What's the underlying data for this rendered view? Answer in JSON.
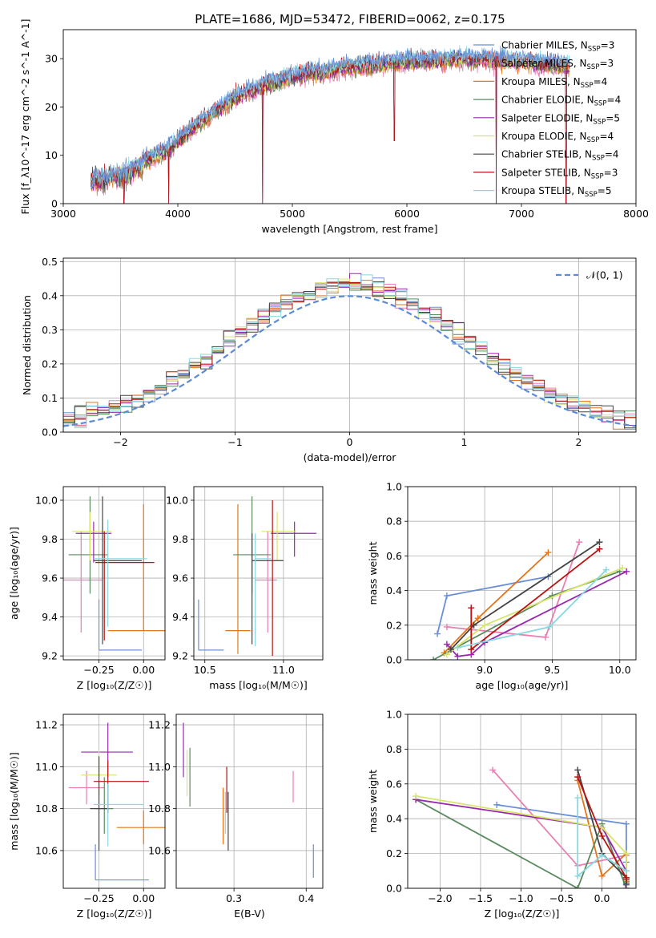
{
  "figure_title": "PLATE=1686, MJD=53472, FIBERID=0062, z=0.175",
  "colors": {
    "Chabrier MILES": "#6a8fd6",
    "Salpeter MILES": "#ea7fb4",
    "Kroupa MILES": "#e1761c",
    "Chabrier ELODIE": "#5a8a5e",
    "Salpeter ELODIE": "#9a27b0",
    "Kroupa ELODIE": "#d7e56a",
    "Chabrier STELIB": "#444444",
    "Salpeter STELIB": "#bb1111",
    "Kroupa STELIB": "#88d8e0"
  },
  "chart_data": [
    {
      "id": "spectrum",
      "type": "line",
      "xlabel": "wavelength [Angstrom, rest frame]",
      "ylabel": "Flux [f_λ10^-17 erg cm^-2 s^-1 A^-1]",
      "xlim": [
        3000,
        8000
      ],
      "ylim": [
        0,
        36
      ],
      "xticks": [
        3000,
        4000,
        5000,
        6000,
        7000,
        8000
      ],
      "yticks": [
        0,
        10,
        20,
        30
      ],
      "grid": false,
      "legend_position": "top-right",
      "legend": [
        {
          "label": "Chabrier MILES, N",
          "sub": "SSP",
          "tail": "=3",
          "model": "Chabrier MILES"
        },
        {
          "label": "Salpeter MILES, N",
          "sub": "SSP",
          "tail": "=3",
          "model": "Salpeter MILES"
        },
        {
          "label": "Kroupa MILES, N",
          "sub": "SSP",
          "tail": "=4",
          "model": "Kroupa MILES"
        },
        {
          "label": "Chabrier ELODIE, N",
          "sub": "SSP",
          "tail": "=4",
          "model": "Chabrier ELODIE"
        },
        {
          "label": "Salpeter ELODIE, N",
          "sub": "SSP",
          "tail": "=5",
          "model": "Salpeter ELODIE"
        },
        {
          "label": "Kroupa ELODIE, N",
          "sub": "SSP",
          "tail": "=4",
          "model": "Kroupa ELODIE"
        },
        {
          "label": "Chabrier STELIB, N",
          "sub": "SSP",
          "tail": "=4",
          "model": "Chabrier STELIB"
        },
        {
          "label": "Salpeter STELIB, N",
          "sub": "SSP",
          "tail": "=3",
          "model": "Salpeter STELIB"
        },
        {
          "label": "Kroupa STELIB, N",
          "sub": "SSP",
          "tail": "=5",
          "model": "Kroupa STELIB"
        }
      ],
      "continuum_x": [
        3250,
        3500,
        3700,
        3900,
        4000,
        4200,
        4500,
        4800,
        5000,
        5300,
        5600,
        6000,
        6500,
        7000,
        7300,
        7420
      ],
      "continuum_y": [
        5.5,
        6.5,
        9,
        11,
        13,
        17,
        22,
        25,
        26.5,
        27.5,
        28.5,
        29.5,
        30,
        29.5,
        29,
        28.5
      ],
      "data_range": [
        3240,
        7420
      ],
      "features": [
        {
          "x": 3530,
          "y": 0
        },
        {
          "x": 3920,
          "y": 0
        },
        {
          "x": 4740,
          "y": 0
        },
        {
          "x": 5890,
          "y": 13
        },
        {
          "x": 6780,
          "y": 0
        },
        {
          "x": 7390,
          "y": 0
        }
      ]
    },
    {
      "id": "residuals",
      "type": "histogram",
      "xlabel": "(data-model)/error",
      "ylabel": "Normed distribution",
      "xlim": [
        -2.5,
        2.5
      ],
      "ylim": [
        0,
        0.51
      ],
      "xticks": [
        -2,
        -1,
        0,
        1,
        2
      ],
      "yticks": [
        0.0,
        0.1,
        0.2,
        0.3,
        0.4,
        0.5
      ],
      "grid": true,
      "legend_position": "top-right",
      "legend": [
        {
          "label": "𝒩(0, 1)"
        }
      ],
      "bins": [
        -2.5,
        2.5,
        50
      ]
    },
    {
      "id": "age_vs_Z",
      "type": "errorbar",
      "xlabel": "Z [log₁₀(Z/Z☉)]",
      "ylabel": "age  [log₁₀(age/yr)]",
      "xlim": [
        -0.45,
        0.12
      ],
      "ylim": [
        9.18,
        10.07
      ],
      "xticks": [
        -0.25,
        0.0
      ],
      "yticks": [
        9.2,
        9.4,
        9.6,
        9.8,
        10.0
      ],
      "grid": true,
      "points": [
        {
          "model": "Chabrier MILES",
          "x": -0.25,
          "xlo": 0.0,
          "xhi": 0.24,
          "y": 9.23,
          "ylo": 0.0,
          "yhi": 0.26
        },
        {
          "model": "Salpeter MILES",
          "x": -0.35,
          "xlo": 0.1,
          "xhi": 0.12,
          "y": 9.59,
          "ylo": 0.27,
          "yhi": 0.25
        },
        {
          "model": "Kroupa MILES",
          "x": 0.0,
          "xlo": 0.2,
          "xhi": 0.2,
          "y": 9.33,
          "ylo": 0.0,
          "yhi": 0.65
        },
        {
          "model": "Chabrier ELODIE",
          "x": -0.3,
          "xlo": 0.12,
          "xhi": 0.1,
          "y": 9.72,
          "ylo": 0.2,
          "yhi": 0.3
        },
        {
          "model": "Salpeter ELODIE",
          "x": -0.28,
          "xlo": 0.1,
          "xhi": 0.1,
          "y": 9.83,
          "ylo": 0.15,
          "yhi": 0.06
        },
        {
          "model": "Kroupa ELODIE",
          "x": -0.3,
          "xlo": 0.1,
          "xhi": 0.12,
          "y": 9.84,
          "ylo": 0.15,
          "yhi": 0.1
        },
        {
          "model": "Chabrier STELIB",
          "x": -0.23,
          "xlo": 0.05,
          "xhi": 0.22,
          "y": 9.69,
          "ylo": 0.43,
          "yhi": 0.33
        },
        {
          "model": "Salpeter STELIB",
          "x": -0.22,
          "xlo": 0.05,
          "xhi": 0.28,
          "y": 9.68,
          "ylo": 0.4,
          "yhi": 0.16
        },
        {
          "model": "Kroupa STELIB",
          "x": -0.2,
          "xlo": 0.08,
          "xhi": 0.22,
          "y": 9.7,
          "ylo": 0.35,
          "yhi": 0.2
        }
      ]
    },
    {
      "id": "age_vs_mass",
      "type": "errorbar",
      "xlabel": "mass [log₁₀(M/M☉)]",
      "ylabel": "",
      "xlim": [
        10.43,
        11.25
      ],
      "ylim": [
        9.18,
        10.07
      ],
      "xticks": [
        10.5,
        11.0
      ],
      "yticks": [
        9.2,
        9.4,
        9.6,
        9.8,
        10.0
      ],
      "grid": true,
      "points": [
        {
          "model": "Chabrier MILES",
          "x": 10.46,
          "xlo": 0.0,
          "xhi": 0.16,
          "y": 9.23,
          "ylo": 0.0,
          "yhi": 0.26
        },
        {
          "model": "Salpeter MILES",
          "x": 10.9,
          "xlo": 0.08,
          "xhi": 0.06,
          "y": 9.59,
          "ylo": 0.27,
          "yhi": 0.25
        },
        {
          "model": "Kroupa MILES",
          "x": 10.71,
          "xlo": 0.08,
          "xhi": 0.08,
          "y": 9.33,
          "ylo": 0.12,
          "yhi": 0.65
        },
        {
          "model": "Chabrier ELODIE",
          "x": 10.8,
          "xlo": 0.12,
          "xhi": 0.12,
          "y": 9.72,
          "ylo": 0.2,
          "yhi": 0.3
        },
        {
          "model": "Salpeter ELODIE",
          "x": 11.07,
          "xlo": 0.15,
          "xhi": 0.14,
          "y": 9.83,
          "ylo": 0.12,
          "yhi": 0.06
        },
        {
          "model": "Kroupa ELODIE",
          "x": 10.96,
          "xlo": 0.1,
          "xhi": 0.12,
          "y": 9.84,
          "ylo": 0.15,
          "yhi": 0.1
        },
        {
          "model": "Chabrier STELIB",
          "x": 10.8,
          "xlo": 0.0,
          "xhi": 0.2,
          "y": 9.69,
          "ylo": 0.43,
          "yhi": 0.14
        },
        {
          "model": "Salpeter STELIB",
          "x": 10.93,
          "xlo": 0.0,
          "xhi": 0.0,
          "y": 9.68,
          "ylo": 0.48,
          "yhi": 0.32
        },
        {
          "model": "Kroupa STELIB",
          "x": 10.82,
          "xlo": 0.0,
          "xhi": 0.1,
          "y": 9.7,
          "ylo": 0.45,
          "yhi": 0.13
        }
      ]
    },
    {
      "id": "massweight_vs_age",
      "type": "line",
      "xlabel": "age  [log₁₀(age/yr)]",
      "ylabel": "mass weight",
      "xlim": [
        8.43,
        10.12
      ],
      "ylim": [
        0,
        1
      ],
      "xticks": [
        9.0,
        9.5,
        10.0
      ],
      "yticks": [
        0.0,
        0.2,
        0.4,
        0.6,
        0.8,
        1.0
      ],
      "grid": true,
      "series": [
        {
          "model": "Chabrier MILES",
          "x": [
            8.65,
            8.72,
            9.47
          ],
          "y": [
            0.15,
            0.37,
            0.48
          ]
        },
        {
          "model": "Salpeter MILES",
          "x": [
            8.72,
            9.45,
            9.7
          ],
          "y": [
            0.19,
            0.13,
            0.68
          ]
        },
        {
          "model": "Kroupa MILES",
          "x": [
            8.7,
            8.95,
            9.47
          ],
          "y": [
            0.04,
            0.24,
            0.62
          ]
        },
        {
          "model": "Chabrier ELODIE",
          "x": [
            8.62,
            9.5,
            10.0
          ],
          "y": [
            0.0,
            0.37,
            0.51
          ]
        },
        {
          "model": "Salpeter ELODIE",
          "x": [
            8.72,
            8.8,
            8.9,
            9.0,
            10.05
          ],
          "y": [
            0.09,
            0.02,
            0.03,
            0.1,
            0.51
          ]
        },
        {
          "model": "Kroupa ELODIE",
          "x": [
            8.72,
            9.0,
            10.02
          ],
          "y": [
            0.03,
            0.2,
            0.53
          ]
        },
        {
          "model": "Chabrier STELIB",
          "x": [
            8.75,
            8.92,
            9.85
          ],
          "y": [
            0.06,
            0.2,
            0.68
          ]
        },
        {
          "model": "Salpeter STELIB",
          "x": [
            8.9,
            8.9,
            9.85
          ],
          "y": [
            0.3,
            0.06,
            0.64
          ]
        },
        {
          "model": "Kroupa STELIB",
          "x": [
            8.8,
            9.48,
            9.9
          ],
          "y": [
            0.07,
            0.19,
            0.52
          ]
        }
      ]
    },
    {
      "id": "mass_vs_Z",
      "type": "errorbar",
      "xlabel": "Z [log₁₀(Z/Z☉)]",
      "ylabel": "mass [log₁₀(M/M☉)]",
      "xlim": [
        -0.45,
        0.12
      ],
      "ylim": [
        10.42,
        11.25
      ],
      "xticks": [
        -0.25,
        0.0
      ],
      "yticks": [
        10.6,
        10.8,
        11.0,
        11.2
      ],
      "grid": true,
      "points": [
        {
          "model": "Chabrier MILES",
          "x": -0.27,
          "xlo": 0.0,
          "xhi": 0.3,
          "y": 10.46,
          "ylo": 0.0,
          "yhi": 0.17
        },
        {
          "model": "Salpeter MILES",
          "x": -0.32,
          "xlo": 0.1,
          "xhi": 0.1,
          "y": 10.9,
          "ylo": 0.08,
          "yhi": 0.08
        },
        {
          "model": "Kroupa MILES",
          "x": 0.0,
          "xlo": 0.15,
          "xhi": 0.12,
          "y": 10.71,
          "ylo": 0.08,
          "yhi": 0.08
        },
        {
          "model": "Chabrier ELODIE",
          "x": -0.22,
          "xlo": 0.05,
          "xhi": 0.05,
          "y": 10.8,
          "ylo": 0.12,
          "yhi": 0.15
        },
        {
          "model": "Salpeter ELODIE",
          "x": -0.2,
          "xlo": 0.15,
          "xhi": 0.14,
          "y": 11.07,
          "ylo": 0.12,
          "yhi": 0.14
        },
        {
          "model": "Kroupa ELODIE",
          "x": -0.25,
          "xlo": 0.1,
          "xhi": 0.1,
          "y": 10.96,
          "ylo": 0.1,
          "yhi": 0.12
        },
        {
          "model": "Chabrier STELIB",
          "x": -0.25,
          "xlo": 0.05,
          "xhi": 0.05,
          "y": 10.8,
          "ylo": 0.2,
          "yhi": 0.25
        },
        {
          "model": "Salpeter STELIB",
          "x": -0.2,
          "xlo": 0.08,
          "xhi": 0.23,
          "y": 10.93,
          "ylo": 0.15,
          "yhi": 0.1
        },
        {
          "model": "Kroupa STELIB",
          "x": -0.2,
          "xlo": 0.08,
          "xhi": 0.2,
          "y": 10.82,
          "ylo": 0.2,
          "yhi": 0.1
        }
      ]
    },
    {
      "id": "mass_vs_EBV",
      "type": "errorbar",
      "xlabel": "E(B-V)",
      "ylabel": "",
      "xlim": [
        0.22,
        0.423
      ],
      "ylim": [
        10.42,
        11.25
      ],
      "xticks": [
        0.3,
        0.4
      ],
      "yticks": [
        10.6,
        10.8,
        11.0,
        11.2
      ],
      "grid": true,
      "points": [
        {
          "model": "Chabrier MILES",
          "x": 0.41,
          "xlo": 0.0,
          "xhi": 0.0,
          "y": 10.54,
          "ylo": 0.07,
          "yhi": 0.09
        },
        {
          "model": "Salpeter MILES",
          "x": 0.382,
          "xlo": 0.0,
          "xhi": 0.0,
          "y": 10.9,
          "ylo": 0.07,
          "yhi": 0.08
        },
        {
          "model": "Kroupa MILES",
          "x": 0.285,
          "xlo": 0.0,
          "xhi": 0.0,
          "y": 10.8,
          "ylo": 0.17,
          "yhi": 0.1
        },
        {
          "model": "Chabrier ELODIE",
          "x": 0.239,
          "xlo": 0.0,
          "xhi": 0.0,
          "y": 10.95,
          "ylo": 0.14,
          "yhi": 0.14
        },
        {
          "model": "Salpeter ELODIE",
          "x": 0.23,
          "xlo": 0.0,
          "xhi": 0.0,
          "y": 11.07,
          "ylo": 0.12,
          "yhi": 0.14
        },
        {
          "model": "Kroupa ELODIE",
          "x": 0.235,
          "xlo": 0.0,
          "xhi": 0.0,
          "y": 10.96,
          "ylo": 0.1,
          "yhi": 0.12
        },
        {
          "model": "Chabrier STELIB",
          "x": 0.292,
          "xlo": 0.0,
          "xhi": 0.0,
          "y": 10.78,
          "ylo": 0.18,
          "yhi": 0.1
        },
        {
          "model": "Salpeter STELIB",
          "x": 0.29,
          "xlo": 0.0,
          "xhi": 0.0,
          "y": 10.93,
          "ylo": 0.15,
          "yhi": 0.07
        },
        {
          "model": "Kroupa STELIB",
          "x": 0.288,
          "xlo": 0.0,
          "xhi": 0.0,
          "y": 10.82,
          "ylo": 0.14,
          "yhi": 0.06
        }
      ]
    },
    {
      "id": "massweight_vs_Z",
      "type": "line",
      "xlabel": "Z [log₁₀(Z/Z☉)]",
      "ylabel": "mass weight",
      "xlim": [
        -2.4,
        0.42
      ],
      "ylim": [
        0,
        1
      ],
      "xticks": [
        -2.0,
        -1.5,
        -1.0,
        -0.5,
        0.0
      ],
      "yticks": [
        0.0,
        0.2,
        0.4,
        0.6,
        0.8,
        1.0
      ],
      "grid": true,
      "series": [
        {
          "model": "Chabrier MILES",
          "x": [
            -1.3,
            0.3,
            0.3
          ],
          "y": [
            0.48,
            0.37,
            0.15
          ]
        },
        {
          "model": "Salpeter MILES",
          "x": [
            -1.35,
            -0.3,
            0.3,
            0.3
          ],
          "y": [
            0.68,
            0.13,
            0.19,
            0.19
          ]
        },
        {
          "model": "Kroupa MILES",
          "x": [
            -0.3,
            0.0,
            0.3,
            0.3
          ],
          "y": [
            0.62,
            0.07,
            0.2,
            0.04
          ]
        },
        {
          "model": "Chabrier ELODIE",
          "x": [
            -2.3,
            -0.3,
            0.0,
            0.3
          ],
          "y": [
            0.51,
            0.0,
            0.37,
            0.0
          ]
        },
        {
          "model": "Salpeter ELODIE",
          "x": [
            -2.3,
            0.0,
            0.3,
            0.3
          ],
          "y": [
            0.51,
            0.35,
            0.1,
            0.02
          ]
        },
        {
          "model": "Kroupa ELODIE",
          "x": [
            -2.3,
            0.0,
            0.3,
            0.3
          ],
          "y": [
            0.53,
            0.35,
            0.2,
            0.03
          ]
        },
        {
          "model": "Chabrier STELIB",
          "x": [
            -0.3,
            0.0,
            0.3,
            0.3
          ],
          "y": [
            0.68,
            0.2,
            0.06,
            0.03
          ]
        },
        {
          "model": "Salpeter STELIB",
          "x": [
            -0.3,
            0.0,
            0.3,
            0.3
          ],
          "y": [
            0.64,
            0.3,
            0.06,
            0.05
          ]
        },
        {
          "model": "Kroupa STELIB",
          "x": [
            -0.3,
            -0.3,
            0.0,
            0.3
          ],
          "y": [
            0.52,
            0.07,
            0.19,
            0.1
          ]
        }
      ]
    }
  ]
}
